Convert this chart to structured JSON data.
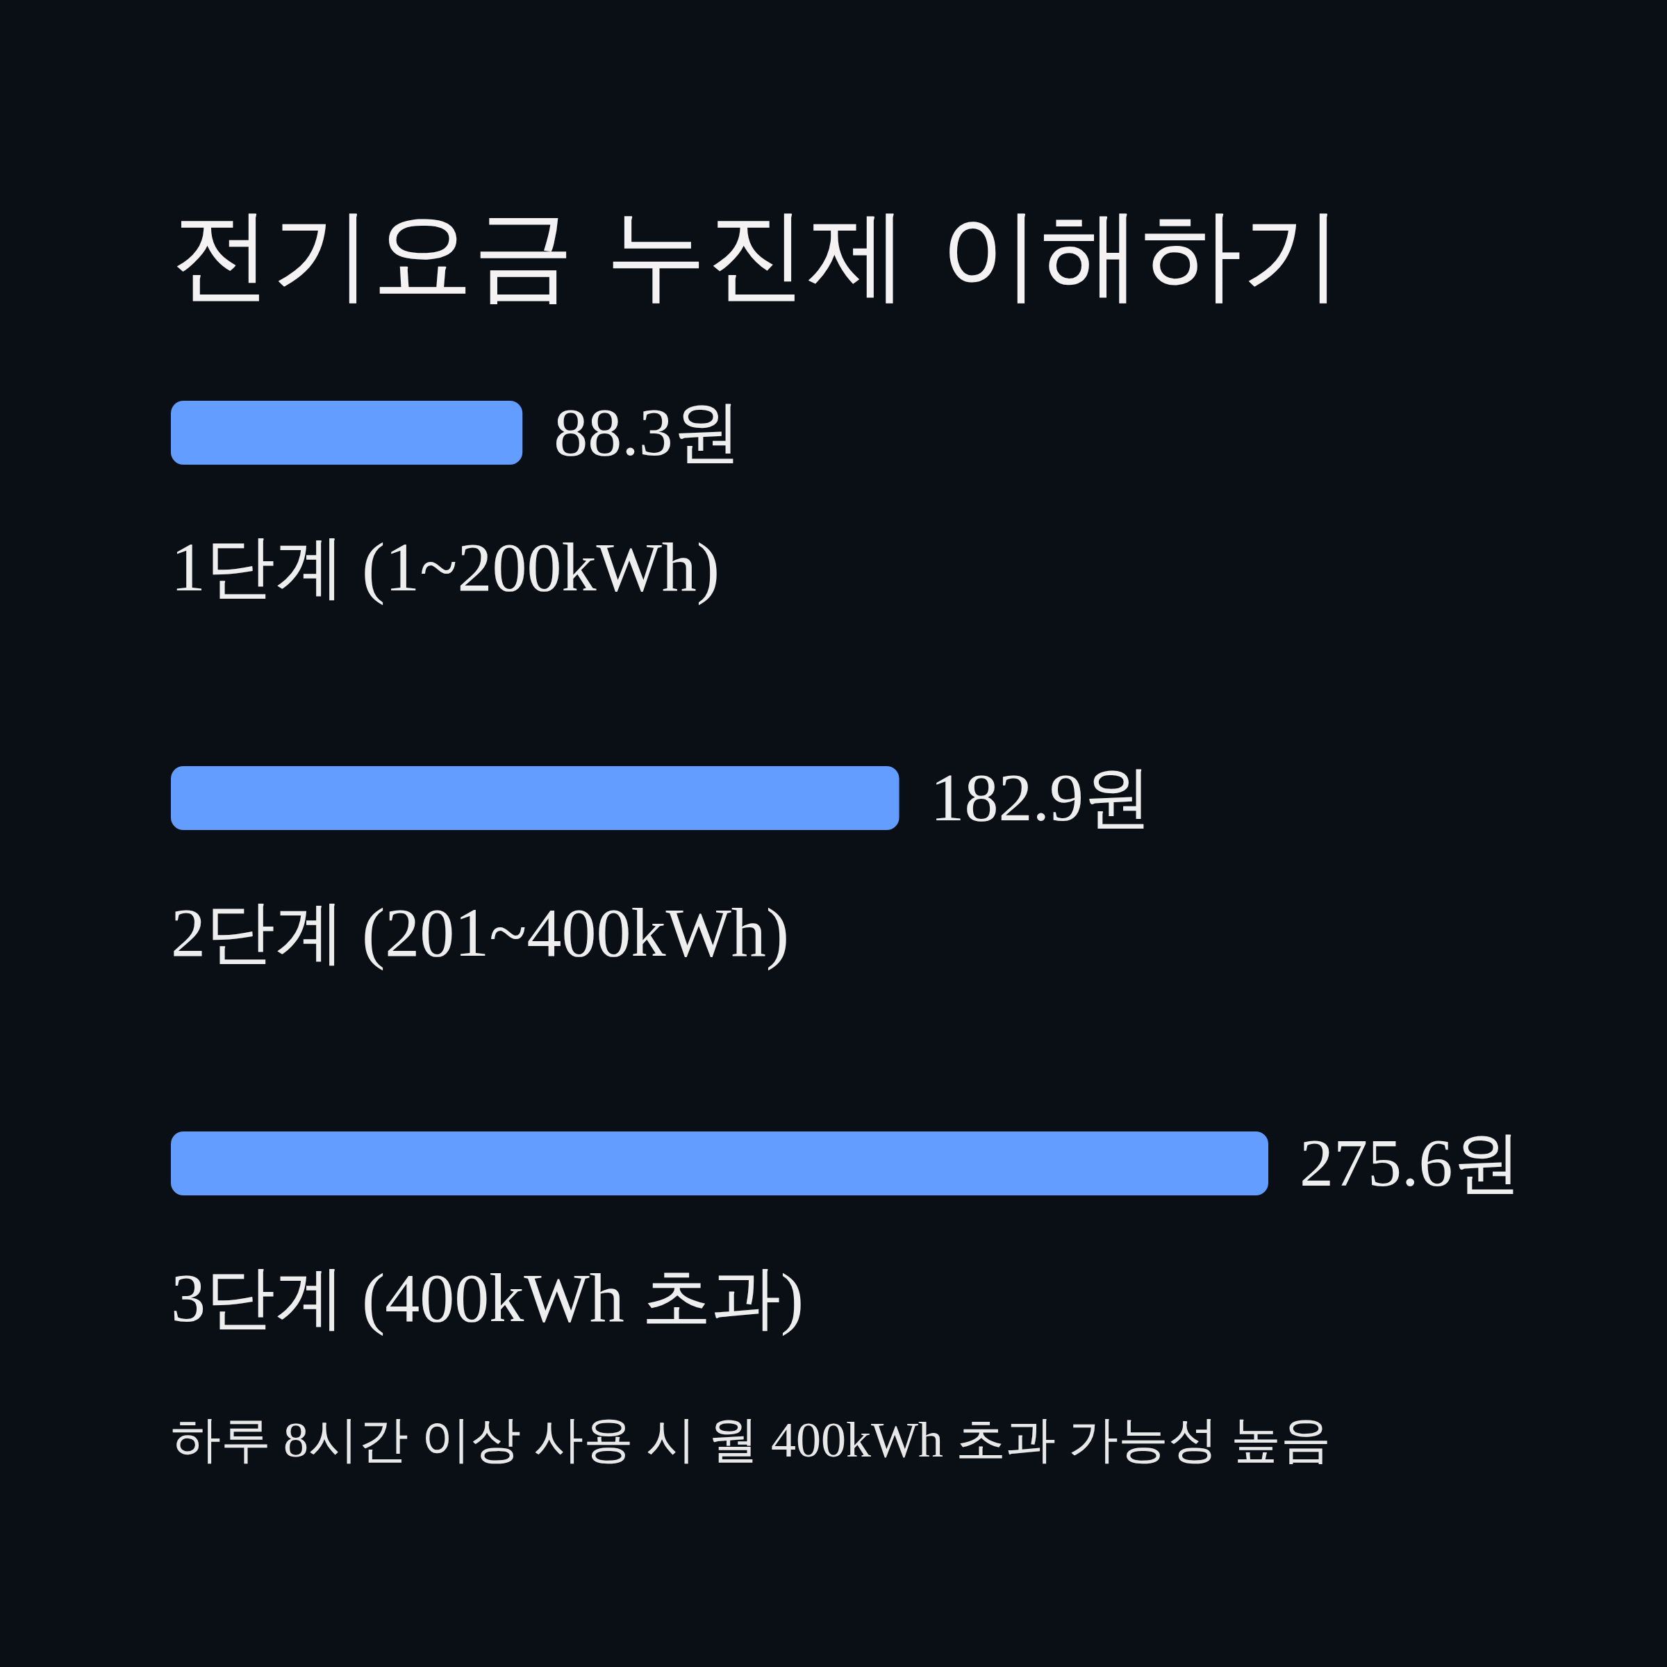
{
  "chart_data": {
    "type": "bar",
    "orientation": "horizontal",
    "title": "전기요금 누진제 이해하기",
    "categories": [
      "1단계 (1~200kWh)",
      "2단계 (201~400kWh)",
      "3단계 (400kWh 초과)"
    ],
    "values": [
      88.3,
      182.9,
      275.6
    ],
    "value_labels": [
      "88.3원",
      "182.9원",
      "275.6원"
    ],
    "color": "#639dff",
    "tick_labels": "y",
    "annotations": [
      "하루 8시간 이상 사용 시 월 400kWh 초과 가능성 높음"
    ]
  }
}
